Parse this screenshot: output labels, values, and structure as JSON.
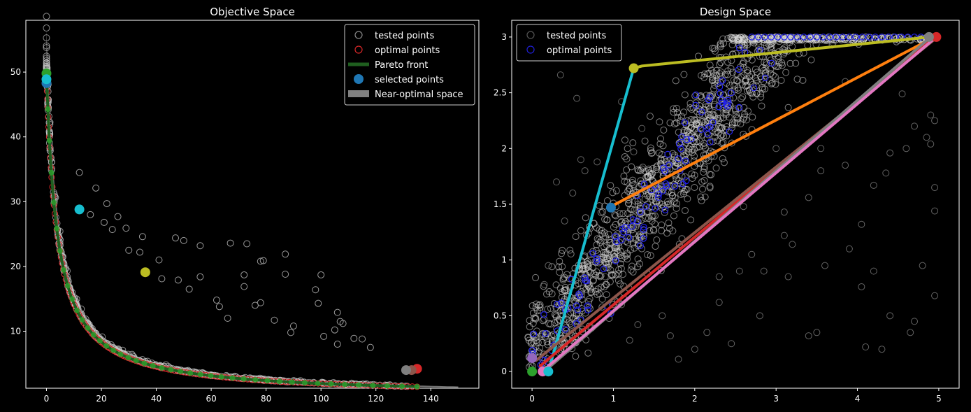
{
  "figure": {
    "background": "#000000",
    "foreground": "#ffffff"
  },
  "chart_data": [
    {
      "type": "scatter",
      "title": "Objective Space",
      "xlabel": "",
      "ylabel": "",
      "xlim": [
        -7.5,
        157.5
      ],
      "ylim": [
        1.2,
        58.0
      ],
      "xticks": [
        0,
        20,
        40,
        60,
        80,
        100,
        120,
        140
      ],
      "yticks": [
        10,
        20,
        30,
        40,
        50
      ],
      "grid": false,
      "legend": {
        "placement": "top-right",
        "entries": [
          {
            "label": "tested points",
            "kind": "hollow-circle",
            "color": "#888888"
          },
          {
            "label": "optimal points",
            "kind": "hollow-circle",
            "color": "#d62728"
          },
          {
            "label": "Pareto front",
            "kind": "line",
            "color": "#1f5f1f"
          },
          {
            "label": "selected points",
            "kind": "filled-circle",
            "color": "#1f77b4"
          },
          {
            "label": "Near-optimal space",
            "kind": "patch",
            "color": "#808080"
          }
        ]
      },
      "front_formula": "y = 200 / (x + 4)",
      "tested_outliers": [
        [
          12,
          34.5
        ],
        [
          18,
          32.1
        ],
        [
          22,
          29.7
        ],
        [
          16,
          28.0
        ],
        [
          26,
          27.7
        ],
        [
          21,
          26.8
        ],
        [
          29,
          25.9
        ],
        [
          24,
          25.7
        ],
        [
          35,
          24.6
        ],
        [
          47,
          24.4
        ],
        [
          50,
          24.0
        ],
        [
          56,
          23.2
        ],
        [
          67,
          23.6
        ],
        [
          73,
          23.5
        ],
        [
          87,
          21.9
        ],
        [
          34,
          22.2
        ],
        [
          41,
          21.0
        ],
        [
          78,
          20.8
        ],
        [
          79,
          20.9
        ],
        [
          100,
          18.7
        ],
        [
          72,
          18.7
        ],
        [
          87,
          18.8
        ],
        [
          98,
          16.4
        ],
        [
          72,
          16.9
        ],
        [
          76,
          14.0
        ],
        [
          99,
          14.3
        ],
        [
          78,
          14.4
        ],
        [
          106,
          12.9
        ],
        [
          107,
          11.5
        ],
        [
          105,
          10.2
        ],
        [
          108,
          11.2
        ],
        [
          90,
          10.8
        ],
        [
          83,
          11.7
        ],
        [
          101,
          9.2
        ],
        [
          112,
          8.9
        ],
        [
          115,
          8.8
        ],
        [
          106,
          8.0
        ],
        [
          118,
          7.5
        ],
        [
          48,
          17.9
        ],
        [
          56,
          18.4
        ],
        [
          62,
          14.8
        ],
        [
          63,
          13.8
        ],
        [
          42,
          18.1
        ],
        [
          30,
          22.5
        ],
        [
          52,
          16.5
        ],
        [
          66,
          12.0
        ],
        [
          89,
          9.8
        ]
      ],
      "selected_points": [
        {
          "x": 0,
          "y": 49.8,
          "color": "#2ca02c"
        },
        {
          "x": 0,
          "y": 48.3,
          "color": "#1f77b4"
        },
        {
          "x": 0,
          "y": 48.9,
          "color": "#17becf"
        },
        {
          "x": 12,
          "y": 28.8,
          "color": "#17becf"
        },
        {
          "x": 36,
          "y": 19.1,
          "color": "#bcbd22"
        },
        {
          "x": 135,
          "y": 4.2,
          "color": "#d62728"
        },
        {
          "x": 133,
          "y": 4.0,
          "color": "#8c564b"
        },
        {
          "x": 131,
          "y": 4.0,
          "color": "#7f7f7f"
        }
      ]
    },
    {
      "type": "scatter",
      "title": "Design Space",
      "xlabel": "",
      "ylabel": "",
      "xlim": [
        -0.25,
        5.25
      ],
      "ylim": [
        -0.15,
        3.15
      ],
      "xticks": [
        0,
        1,
        2,
        3,
        4,
        5
      ],
      "yticks": [
        0.0,
        0.5,
        1.0,
        1.5,
        2.0,
        2.5,
        3.0
      ],
      "grid": false,
      "legend": {
        "placement": "top-left",
        "entries": [
          {
            "label": "tested points",
            "kind": "hollow-circle",
            "color": "#555555"
          },
          {
            "label": "optimal points",
            "kind": "hollow-circle",
            "color": "#1f1fd6"
          }
        ]
      },
      "tested_outliers": [
        [
          0.35,
          2.66
        ],
        [
          0.55,
          2.45
        ],
        [
          0.6,
          1.9
        ],
        [
          0.3,
          1.7
        ],
        [
          0.4,
          1.35
        ],
        [
          0.5,
          1.6
        ],
        [
          0.2,
          0.95
        ],
        [
          0.15,
          0.78
        ],
        [
          0.72,
          1.05
        ],
        [
          0.9,
          0.85
        ],
        [
          1.1,
          0.6
        ],
        [
          1.3,
          0.42
        ],
        [
          1.2,
          0.28
        ],
        [
          1.7,
          0.32
        ],
        [
          1.8,
          0.11
        ],
        [
          2.0,
          0.2
        ],
        [
          2.15,
          0.35
        ],
        [
          2.3,
          0.62
        ],
        [
          2.45,
          0.25
        ],
        [
          2.8,
          0.5
        ],
        [
          2.85,
          0.9
        ],
        [
          3.15,
          0.85
        ],
        [
          3.4,
          0.32
        ],
        [
          3.5,
          0.35
        ],
        [
          3.6,
          0.95
        ],
        [
          3.55,
          1.8
        ],
        [
          3.9,
          1.1
        ],
        [
          4.05,
          0.76
        ],
        [
          4.1,
          0.22
        ],
        [
          4.3,
          0.2
        ],
        [
          4.4,
          0.5
        ],
        [
          4.65,
          0.35
        ],
        [
          4.8,
          0.95
        ],
        [
          4.95,
          0.68
        ],
        [
          4.95,
          1.44
        ],
        [
          4.95,
          1.65
        ],
        [
          4.9,
          2.04
        ],
        [
          4.9,
          2.3
        ],
        [
          4.85,
          2.1
        ],
        [
          4.7,
          2.2
        ],
        [
          4.55,
          2.49
        ],
        [
          4.6,
          2.0
        ],
        [
          4.4,
          1.96
        ],
        [
          4.35,
          1.78
        ],
        [
          4.2,
          1.67
        ],
        [
          4.05,
          1.32
        ],
        [
          3.85,
          1.85
        ],
        [
          3.55,
          2.0
        ],
        [
          3.7,
          2.95
        ],
        [
          3.4,
          1.56
        ],
        [
          3.1,
          1.22
        ],
        [
          2.7,
          1.05
        ],
        [
          2.55,
          0.9
        ],
        [
          2.6,
          1.48
        ],
        [
          3.1,
          1.43
        ],
        [
          3.2,
          1.14
        ],
        [
          1.35,
          2.18
        ],
        [
          1.1,
          2.42
        ],
        [
          1.25,
          1.97
        ],
        [
          0.8,
          1.88
        ],
        [
          0.65,
          1.8
        ],
        [
          1.05,
          2.95
        ],
        [
          0.4,
          2.95
        ],
        [
          3.0,
          2.0
        ],
        [
          3.85,
          2.6
        ],
        [
          4.95,
          2.25
        ],
        [
          4.7,
          0.45
        ],
        [
          4.2,
          0.9
        ],
        [
          2.3,
          0.85
        ],
        [
          1.6,
          0.5
        ]
      ],
      "selected_paths": [
        {
          "color": "#17becf",
          "points": [
            [
              0.2,
              0.0
            ],
            [
              1.25,
              2.72
            ]
          ]
        },
        {
          "color": "#bcbd22",
          "points": [
            [
              1.25,
              2.72
            ],
            [
              1.35,
              2.74
            ],
            [
              4.9,
              3.0
            ]
          ]
        },
        {
          "color": "#ff7f0e",
          "points": [
            [
              0.97,
              1.48
            ],
            [
              4.95,
              3.0
            ]
          ]
        },
        {
          "color": "#d62728",
          "points": [
            [
              0.1,
              0.05
            ],
            [
              4.95,
              3.0
            ]
          ]
        },
        {
          "color": "#8c564b",
          "points": [
            [
              0.05,
              0.1
            ],
            [
              4.95,
              2.98
            ]
          ]
        },
        {
          "color": "#7f7f7f",
          "points": [
            [
              0.15,
              0.0
            ],
            [
              4.9,
              3.0
            ]
          ]
        },
        {
          "color": "#e377c2",
          "points": [
            [
              0.12,
              0.0
            ],
            [
              4.92,
              2.97
            ]
          ]
        }
      ],
      "selected_points": [
        {
          "x": 0.0,
          "y": 0.12,
          "color": "#9467bd"
        },
        {
          "x": 0.0,
          "y": 0.0,
          "color": "#2ca02c"
        },
        {
          "x": 0.13,
          "y": 0.0,
          "color": "#e377c2"
        },
        {
          "x": 0.2,
          "y": 0.0,
          "color": "#17becf"
        },
        {
          "x": 0.97,
          "y": 1.47,
          "color": "#1f77b4"
        },
        {
          "x": 1.25,
          "y": 2.72,
          "color": "#bcbd22"
        },
        {
          "x": 4.97,
          "y": 3.0,
          "color": "#d62728"
        },
        {
          "x": 4.88,
          "y": 3.0,
          "color": "#7f7f7f"
        }
      ]
    }
  ]
}
